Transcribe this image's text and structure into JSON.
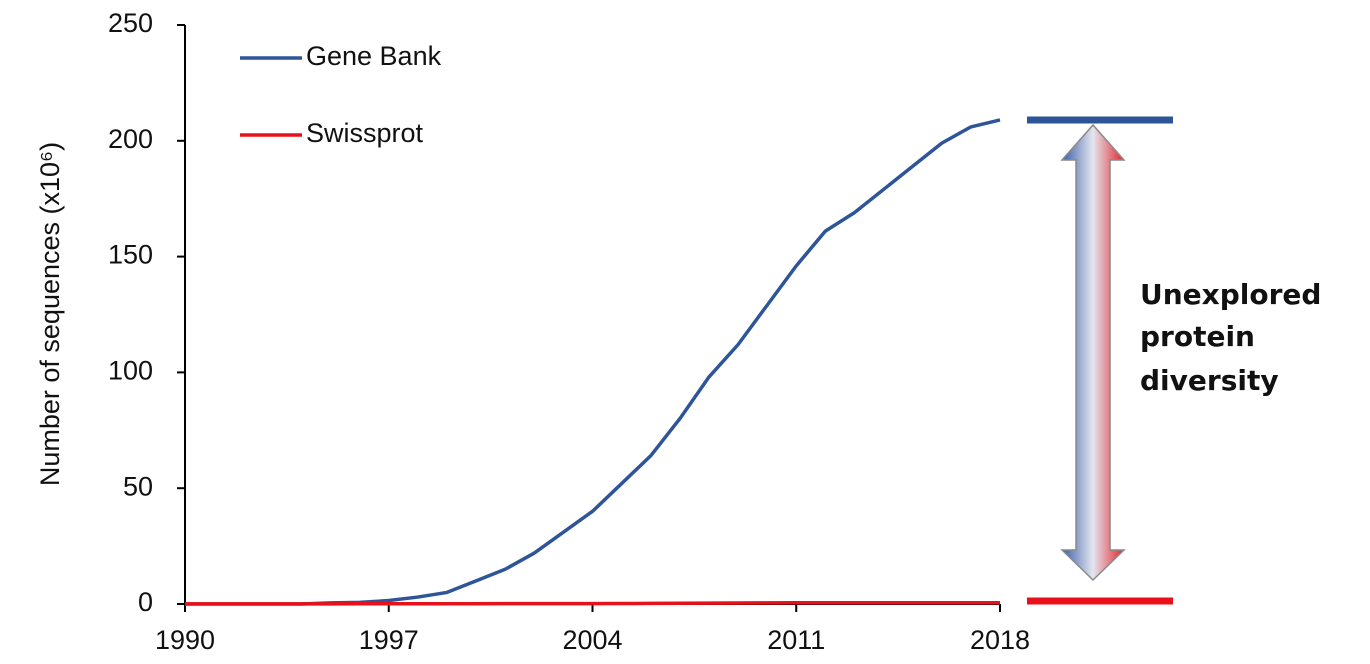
{
  "chart_data": {
    "type": "line",
    "ylabel": "Number of sequences (x10⁶)",
    "x": [
      1990,
      1991,
      1992,
      1993,
      1994,
      1995,
      1996,
      1997,
      1998,
      1999,
      2000,
      2001,
      2002,
      2003,
      2004,
      2005,
      2006,
      2007,
      2008,
      2009,
      2010,
      2011,
      2012,
      2013,
      2014,
      2015,
      2016,
      2017,
      2018
    ],
    "series": [
      {
        "name": "Gene Bank",
        "color": "#2e5597",
        "values": [
          0,
          0,
          0,
          0,
          0,
          0.5,
          0.7,
          1.5,
          3,
          5,
          10,
          15,
          22,
          31,
          40,
          52,
          64,
          80,
          98,
          112,
          129,
          146,
          161,
          169,
          179,
          189,
          199,
          206,
          209
        ]
      },
      {
        "name": "Swissprot",
        "color": "#e8101a",
        "values": [
          0.05,
          0.05,
          0.06,
          0.07,
          0.08,
          0.08,
          0.09,
          0.1,
          0.1,
          0.12,
          0.13,
          0.14,
          0.15,
          0.17,
          0.18,
          0.2,
          0.25,
          0.3,
          0.4,
          0.45,
          0.5,
          0.52,
          0.53,
          0.54,
          0.55,
          0.55,
          0.55,
          0.56,
          0.56
        ]
      }
    ],
    "xlim": [
      1990,
      2018
    ],
    "xticks": [
      1990,
      1997,
      2004,
      2011,
      2018
    ],
    "ylim": [
      0,
      250
    ],
    "yticks": [
      0,
      50,
      100,
      150,
      200,
      250
    ],
    "grid": false,
    "legend": "upper left",
    "annotation_lines": [
      "Unexplored",
      "protein",
      "diversity"
    ]
  }
}
